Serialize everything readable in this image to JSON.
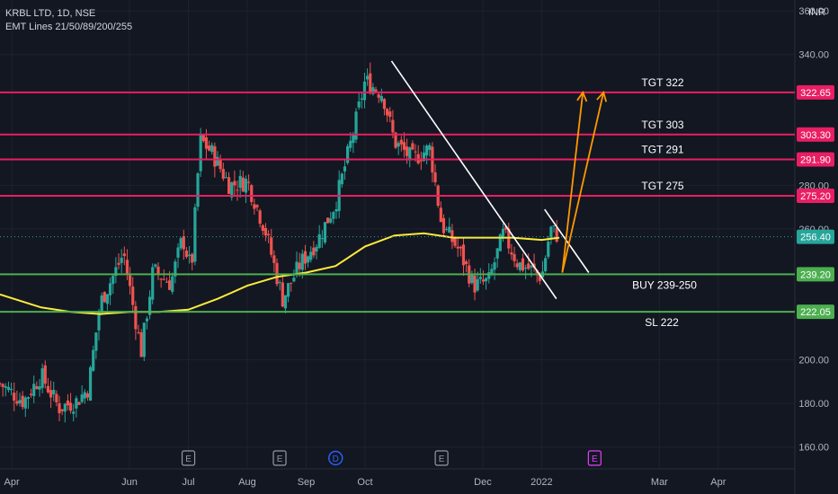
{
  "header": {
    "symbol_line": "KRBL LTD, 1D, NSE",
    "indicator_line": "EMT Lines 21/50/89/200/255",
    "currency": "INR"
  },
  "colors": {
    "background": "#131722",
    "candle_up": "#26a69a",
    "candle_down": "#ef5350",
    "resistance_line": "#e91e63",
    "support_line": "#4caf50",
    "ema_line": "#ffeb3b",
    "trend_line": "#ffffff",
    "projection_arrow": "#ff9800",
    "last_price_badge": "#26a69a"
  },
  "chart_data": {
    "type": "candlestick",
    "x_tick_labels": [
      "Apr",
      "Jun",
      "Jul",
      "Aug",
      "Sep",
      "Oct",
      "Dec",
      "2022",
      "Mar",
      "Apr"
    ],
    "x_ticks_months": [
      0,
      2,
      3,
      4,
      5,
      6,
      8,
      9,
      11,
      12
    ],
    "x_range_months": [
      -0.2,
      13.3
    ],
    "y_tick_labels": [
      "360.00",
      "340.00",
      "280.00",
      "260.00",
      "200.00",
      "180.00",
      "160.00"
    ],
    "y_ticks": [
      360,
      340,
      280,
      260,
      200,
      180,
      160
    ],
    "ylim": [
      150,
      365
    ],
    "levels": [
      {
        "label": "TGT 322",
        "badge": "322.65",
        "value": 322.65,
        "kind": "target"
      },
      {
        "label": "TGT 303",
        "badge": "303.30",
        "value": 303.3,
        "kind": "target"
      },
      {
        "label": "TGT 291",
        "badge": "291.90",
        "value": 291.9,
        "kind": "target"
      },
      {
        "label": "TGT 275",
        "badge": "275.20",
        "value": 275.2,
        "kind": "target"
      },
      {
        "label": "BUY 239-250",
        "badge": "239.20",
        "value": 239.2,
        "kind": "support"
      },
      {
        "label": "SL 222",
        "badge": "222.05",
        "value": 222.05,
        "kind": "support"
      }
    ],
    "last_price": {
      "badge": "256.40",
      "value": 256.4
    },
    "price_path": [
      [
        -0.2,
        189
      ],
      [
        0.2,
        181
      ],
      [
        0.5,
        193
      ],
      [
        0.8,
        178
      ],
      [
        1.1,
        181
      ],
      [
        1.3,
        187
      ],
      [
        1.5,
        226
      ],
      [
        1.75,
        240
      ],
      [
        1.9,
        249
      ],
      [
        2.05,
        226
      ],
      [
        2.2,
        204
      ],
      [
        2.4,
        241
      ],
      [
        2.7,
        235
      ],
      [
        2.9,
        256
      ],
      [
        3.05,
        241
      ],
      [
        3.2,
        301
      ],
      [
        3.4,
        295
      ],
      [
        3.7,
        280
      ],
      [
        4.0,
        282
      ],
      [
        4.3,
        260
      ],
      [
        4.6,
        228
      ],
      [
        4.9,
        244
      ],
      [
        5.2,
        255
      ],
      [
        5.5,
        272
      ],
      [
        5.8,
        304
      ],
      [
        6.0,
        328
      ],
      [
        6.3,
        322
      ],
      [
        6.5,
        300
      ],
      [
        6.8,
        292
      ],
      [
        7.1,
        297
      ],
      [
        7.3,
        262
      ],
      [
        7.6,
        250
      ],
      [
        7.85,
        234
      ],
      [
        8.1,
        236
      ],
      [
        8.35,
        258
      ],
      [
        8.6,
        244
      ],
      [
        8.85,
        241
      ],
      [
        9.0,
        238
      ],
      [
        9.15,
        260
      ],
      [
        9.3,
        256.4
      ]
    ],
    "ema_200_path": [
      [
        -0.2,
        230
      ],
      [
        0.5,
        224
      ],
      [
        1.0,
        222
      ],
      [
        1.5,
        221
      ],
      [
        2.0,
        222
      ],
      [
        2.5,
        222
      ],
      [
        3.0,
        223
      ],
      [
        3.5,
        228
      ],
      [
        4.0,
        234
      ],
      [
        4.5,
        238
      ],
      [
        5.0,
        240
      ],
      [
        5.5,
        243
      ],
      [
        6.0,
        252
      ],
      [
        6.5,
        257
      ],
      [
        7.0,
        258
      ],
      [
        7.5,
        256
      ],
      [
        8.0,
        256
      ],
      [
        8.5,
        256
      ],
      [
        9.0,
        255
      ],
      [
        9.3,
        256
      ]
    ],
    "trend_lines": [
      [
        [
          6.45,
          337
        ],
        [
          9.25,
          228
        ]
      ],
      [
        [
          9.05,
          269
        ],
        [
          9.8,
          240
        ]
      ]
    ],
    "projection_arrows": [
      [
        [
          9.35,
          240
        ],
        [
          9.7,
          322.65
        ]
      ],
      [
        [
          9.35,
          240
        ],
        [
          10.05,
          322.65
        ]
      ]
    ],
    "event_markers": [
      {
        "x": 3.0,
        "label": "E"
      },
      {
        "x": 4.55,
        "label": "E"
      },
      {
        "x": 5.5,
        "label": "D"
      },
      {
        "x": 7.3,
        "label": "E"
      },
      {
        "x": 9.9,
        "label": "E"
      }
    ]
  }
}
